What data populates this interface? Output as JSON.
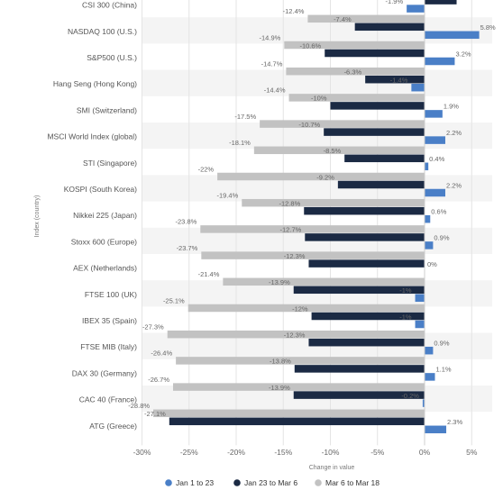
{
  "chart_data": {
    "type": "bar",
    "orientation": "horizontal",
    "xlabel": "Change in value",
    "ylabel": "Index (country)",
    "xlim": [
      -30,
      5
    ],
    "xticks": [
      "-30%",
      "-25%",
      "-20%",
      "-15%",
      "-10%",
      "-5%",
      "0%",
      "5%"
    ],
    "categories": [
      "CSI 300 (China)",
      "NASDAQ 100 (U.S.)",
      "S&P500 (U.S.)",
      "Hang Seng (Hong Kong)",
      "SMI (Switzerland)",
      "MSCI World Index (global)",
      "STI (Singapore)",
      "KOSPI (South Korea)",
      "Nikkei 225 (Japan)",
      "Stoxx 600 (Europe)",
      "AEX (Netherlands)",
      "FTSE 100 (UK)",
      "IBEX 35 (Spain)",
      "FTSE MIB (Italy)",
      "DAX 30 (Germany)",
      "CAC 40 (France)",
      "ATG (Greece)"
    ],
    "series": [
      {
        "name": "Jan 1 to 23",
        "color": "#4a7fc7",
        "values": [
          -1.9,
          5.8,
          3.2,
          -1.4,
          1.9,
          2.2,
          0.4,
          2.2,
          0.6,
          0.9,
          0,
          -1,
          -1,
          0.9,
          1.1,
          -0.2,
          2.3
        ],
        "labels": [
          "-1.9%",
          "5.8%",
          "3.2%",
          "-1.4%",
          "1.9%",
          "2.2%",
          "0.4%",
          "2.2%",
          "0.6%",
          "0.9%",
          "0%",
          "-1%",
          "-1%",
          "0.9%",
          "1.1%",
          "-0.2%",
          "2.3%"
        ]
      },
      {
        "name": "Jan 23 to Mar 6",
        "color": "#1b2a44",
        "values": [
          3.4,
          -7.4,
          -10.6,
          -6.3,
          -10,
          -10.7,
          -8.5,
          -9.2,
          -12.8,
          -12.7,
          -12.3,
          -13.9,
          -12,
          -12.3,
          -13.8,
          -13.9,
          -27.1
        ],
        "labels": [
          "3.4%",
          "-7.4%",
          "-10.6%",
          "-6.3%",
          "-10%",
          "-10.7%",
          "-8.5%",
          "-9.2%",
          "-12.8%",
          "-12.7%",
          "-12.3%",
          "-13.9%",
          "-12%",
          "-12.3%",
          "-13.8%",
          "-13.9%",
          "-27.1%"
        ]
      },
      {
        "name": "Mar 6 to Mar 18",
        "color": "#c2c2c2",
        "values": [
          null,
          -12.4,
          -14.9,
          -14.7,
          -14.4,
          -17.5,
          -18.1,
          -22,
          -19.4,
          -23.8,
          -23.7,
          -21.4,
          -25.1,
          -27.3,
          -26.4,
          -26.7,
          -28.8
        ],
        "labels": [
          "",
          "-12.4%",
          "-14.9%",
          "-14.7%",
          "-14.4%",
          "-17.5%",
          "-18.1%",
          "-22%",
          "-19.4%",
          "-23.8%",
          "-23.7%",
          "-21.4%",
          "-25.1%",
          "-27.3%",
          "-26.4%",
          "-26.7%",
          "-28.8%"
        ]
      }
    ],
    "grid": true,
    "legend": "bottom"
  }
}
